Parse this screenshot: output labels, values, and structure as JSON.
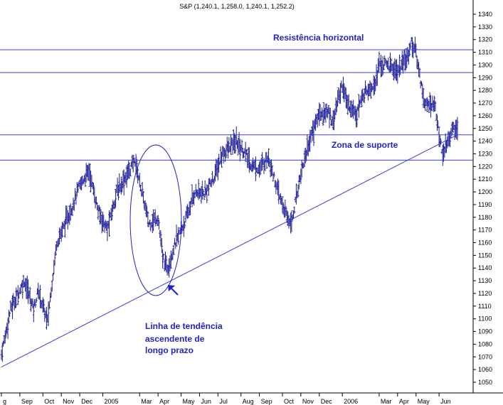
{
  "chart_data": {
    "type": "ohlc",
    "title": "S&P (1,240.1, 1,258.0, 1,240.1, 1,252.2)",
    "y_ticks": [
      1050,
      1060,
      1070,
      1080,
      1090,
      1100,
      1110,
      1120,
      1130,
      1140,
      1150,
      1160,
      1170,
      1180,
      1190,
      1200,
      1210,
      1220,
      1230,
      1240,
      1250,
      1260,
      1270,
      1280,
      1290,
      1300,
      1310,
      1320,
      1330,
      1340
    ],
    "ylim": [
      1040,
      1346
    ],
    "x_ticks": [
      {
        "label": "g",
        "week": 0
      },
      {
        "label": "Sep",
        "week": 4
      },
      {
        "label": "Oct",
        "week": 9
      },
      {
        "label": "Nov",
        "week": 13
      },
      {
        "label": "Dec",
        "week": 17
      },
      {
        "label": "2005",
        "week": 22
      },
      {
        "label": "Mar",
        "week": 30
      },
      {
        "label": "Apr",
        "week": 34
      },
      {
        "label": "May",
        "week": 39
      },
      {
        "label": "Jun",
        "week": 43
      },
      {
        "label": "Jul",
        "week": 47
      },
      {
        "label": "Aug",
        "week": 52
      },
      {
        "label": "Sep",
        "week": 56
      },
      {
        "label": "Oct",
        "week": 61
      },
      {
        "label": "Nov",
        "week": 65
      },
      {
        "label": "Dec",
        "week": 69
      },
      {
        "label": "2006",
        "week": 74
      },
      {
        "label": "Mar",
        "week": 82
      },
      {
        "label": "Apr",
        "week": 86
      },
      {
        "label": "May",
        "week": 90
      },
      {
        "label": "Jun",
        "week": 95
      }
    ],
    "horizontal_lines": [
      1312,
      1294,
      1245,
      1225
    ],
    "trendline": [
      {
        "week": 0,
        "value": 1062
      },
      {
        "week": 99,
        "value": 1245
      }
    ],
    "anchors": [
      {
        "week": 0,
        "value": 1072
      },
      {
        "week": 2,
        "value": 1108
      },
      {
        "week": 5,
        "value": 1130
      },
      {
        "week": 7,
        "value": 1108
      },
      {
        "week": 8,
        "value": 1122
      },
      {
        "week": 10,
        "value": 1098
      },
      {
        "week": 12,
        "value": 1160
      },
      {
        "week": 15,
        "value": 1185
      },
      {
        "week": 17,
        "value": 1205
      },
      {
        "week": 19,
        "value": 1217
      },
      {
        "week": 21,
        "value": 1185
      },
      {
        "week": 23,
        "value": 1170
      },
      {
        "week": 25,
        "value": 1200
      },
      {
        "week": 27,
        "value": 1212
      },
      {
        "week": 29,
        "value": 1225
      },
      {
        "week": 30,
        "value": 1208
      },
      {
        "week": 32,
        "value": 1175
      },
      {
        "week": 34,
        "value": 1180
      },
      {
        "week": 35,
        "value": 1148
      },
      {
        "week": 36,
        "value": 1140
      },
      {
        "week": 38,
        "value": 1162
      },
      {
        "week": 40,
        "value": 1178
      },
      {
        "week": 42,
        "value": 1200
      },
      {
        "week": 44,
        "value": 1198
      },
      {
        "week": 46,
        "value": 1210
      },
      {
        "week": 48,
        "value": 1230
      },
      {
        "week": 51,
        "value": 1240
      },
      {
        "week": 53,
        "value": 1230
      },
      {
        "week": 54,
        "value": 1222
      },
      {
        "week": 56,
        "value": 1218
      },
      {
        "week": 58,
        "value": 1228
      },
      {
        "week": 60,
        "value": 1200
      },
      {
        "week": 62,
        "value": 1180
      },
      {
        "week": 63,
        "value": 1176
      },
      {
        "week": 65,
        "value": 1215
      },
      {
        "week": 67,
        "value": 1242
      },
      {
        "week": 69,
        "value": 1262
      },
      {
        "week": 71,
        "value": 1262
      },
      {
        "week": 72,
        "value": 1256
      },
      {
        "week": 73,
        "value": 1272
      },
      {
        "week": 74,
        "value": 1285
      },
      {
        "week": 75,
        "value": 1270
      },
      {
        "week": 77,
        "value": 1262
      },
      {
        "week": 79,
        "value": 1280
      },
      {
        "week": 81,
        "value": 1285
      },
      {
        "week": 82,
        "value": 1300
      },
      {
        "week": 84,
        "value": 1300
      },
      {
        "week": 86,
        "value": 1295
      },
      {
        "week": 88,
        "value": 1305
      },
      {
        "week": 89,
        "value": 1318
      },
      {
        "week": 90,
        "value": 1310
      },
      {
        "week": 91,
        "value": 1288
      },
      {
        "week": 92,
        "value": 1268
      },
      {
        "week": 94,
        "value": 1270
      },
      {
        "week": 95,
        "value": 1245
      },
      {
        "week": 96,
        "value": 1228
      },
      {
        "week": 97,
        "value": 1242
      },
      {
        "week": 98,
        "value": 1250
      }
    ],
    "annotations": {
      "resistance": "Resistência horizontal",
      "support": "Zona de suporte",
      "trend_line1": "Linha de tendência",
      "trend_line2": "ascendente de",
      "trend_line3": "longo prazo"
    },
    "grid": false
  },
  "colors": {
    "price": "#1c1c9a",
    "lines": "#3a3ae0",
    "annotation": "#1f1fc8",
    "axis": "#000000"
  }
}
